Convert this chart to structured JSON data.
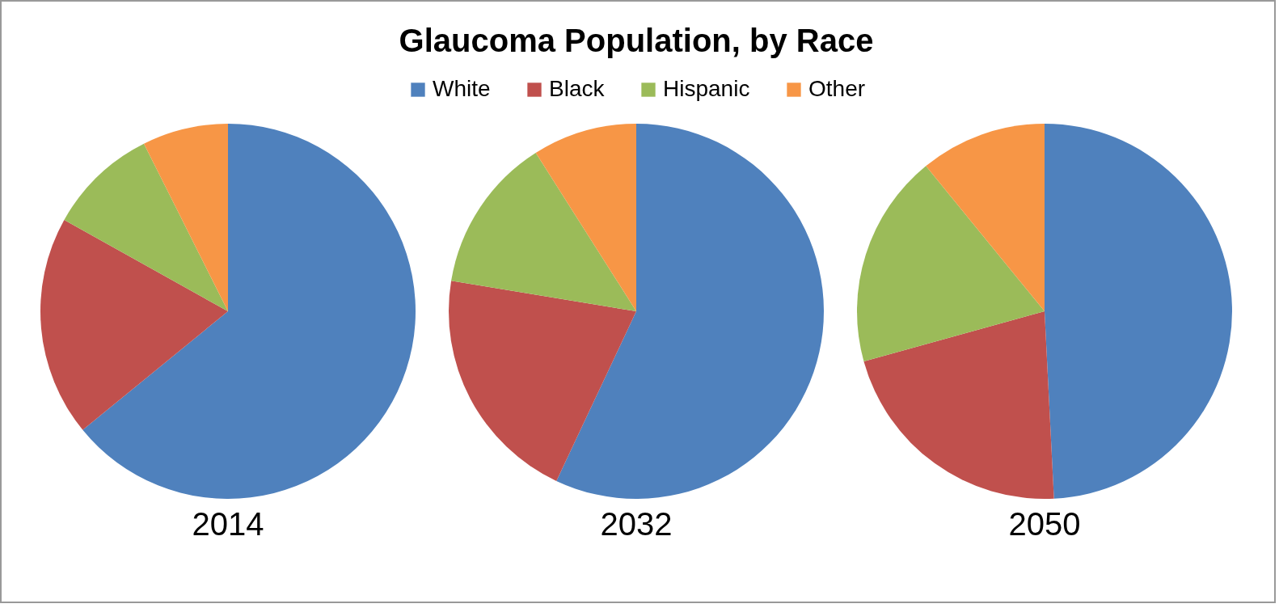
{
  "chart_data": {
    "type": "pie",
    "title": "Glaucoma Population, by Race",
    "legend": "top",
    "categories": [
      "White",
      "Black",
      "Hispanic",
      "Other"
    ],
    "colors": [
      "#4f81bd",
      "#c0504d",
      "#9bbb59",
      "#f79646"
    ],
    "series": [
      {
        "name": "2014",
        "values": [
          64.1,
          19.0,
          9.5,
          7.4
        ]
      },
      {
        "name": "2032",
        "values": [
          57.0,
          20.6,
          13.4,
          9.0
        ]
      },
      {
        "name": "2050",
        "values": [
          49.2,
          21.5,
          18.4,
          10.9
        ]
      }
    ]
  }
}
